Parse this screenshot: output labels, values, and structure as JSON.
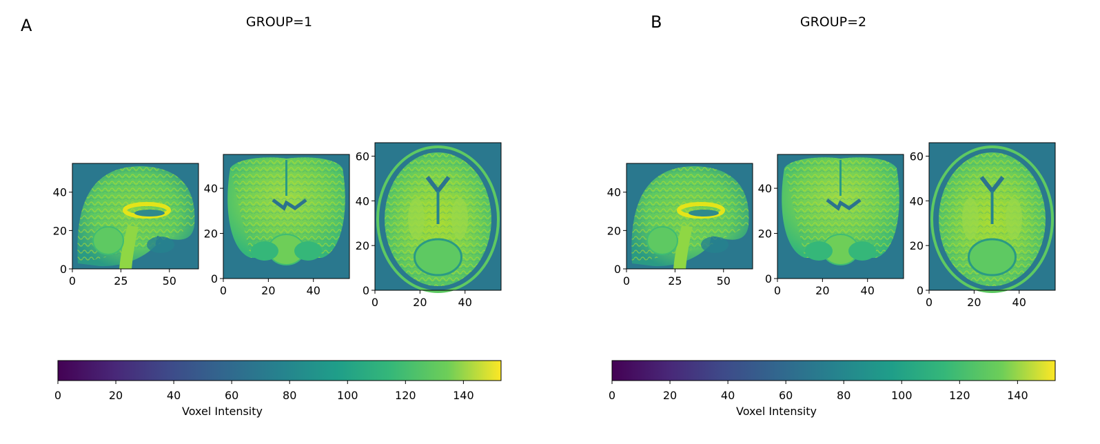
{
  "panels": [
    {
      "letter": "A",
      "title": "GROUP=1",
      "views": [
        {
          "name": "sagittal",
          "x_ticks": [
            "0",
            "25",
            "50"
          ],
          "y_ticks": [
            "0",
            "20",
            "40"
          ]
        },
        {
          "name": "coronal",
          "x_ticks": [
            "0",
            "20",
            "40"
          ],
          "y_ticks": [
            "0",
            "20",
            "40"
          ]
        },
        {
          "name": "axial",
          "x_ticks": [
            "0",
            "20",
            "40"
          ],
          "y_ticks": [
            "0",
            "20",
            "40",
            "60"
          ]
        }
      ],
      "colorbar": {
        "label": "Voxel Intensity",
        "ticks": [
          "0",
          "20",
          "40",
          "60",
          "80",
          "100",
          "120",
          "140"
        ],
        "vmin": 0,
        "vmax": 153
      }
    },
    {
      "letter": "B",
      "title": "GROUP=2",
      "views": [
        {
          "name": "sagittal",
          "x_ticks": [
            "0",
            "25",
            "50"
          ],
          "y_ticks": [
            "0",
            "20",
            "40"
          ]
        },
        {
          "name": "coronal",
          "x_ticks": [
            "0",
            "20",
            "40"
          ],
          "y_ticks": [
            "0",
            "20",
            "40"
          ]
        },
        {
          "name": "axial",
          "x_ticks": [
            "0",
            "20",
            "40"
          ],
          "y_ticks": [
            "0",
            "20",
            "40",
            "60"
          ]
        }
      ],
      "colorbar": {
        "label": "Voxel Intensity",
        "ticks": [
          "0",
          "20",
          "40",
          "60",
          "80",
          "100",
          "120",
          "140"
        ],
        "vmin": 0,
        "vmax": 153
      }
    }
  ],
  "chart_data": [
    {
      "type": "heatmap",
      "title": "GROUP=1",
      "panel": "A",
      "images": [
        {
          "view": "sagittal",
          "xlim": [
            0,
            65
          ],
          "ylim": [
            0,
            55
          ],
          "xticks": [
            0,
            25,
            50
          ],
          "yticks": [
            0,
            20,
            40
          ]
        },
        {
          "view": "coronal",
          "xlim": [
            0,
            56
          ],
          "ylim": [
            0,
            55
          ],
          "xticks": [
            0,
            20,
            40
          ],
          "yticks": [
            0,
            20,
            40
          ]
        },
        {
          "view": "axial",
          "xlim": [
            0,
            56
          ],
          "ylim": [
            0,
            66
          ],
          "xticks": [
            0,
            20,
            40
          ],
          "yticks": [
            0,
            20,
            40,
            60
          ]
        }
      ],
      "colormap": "viridis",
      "colorbar": {
        "label": "Voxel Intensity",
        "range": [
          0,
          153
        ],
        "ticks": [
          0,
          20,
          40,
          60,
          80,
          100,
          120,
          140
        ]
      }
    },
    {
      "type": "heatmap",
      "title": "GROUP=2",
      "panel": "B",
      "images": [
        {
          "view": "sagittal",
          "xlim": [
            0,
            65
          ],
          "ylim": [
            0,
            55
          ],
          "xticks": [
            0,
            25,
            50
          ],
          "yticks": [
            0,
            20,
            40
          ]
        },
        {
          "view": "coronal",
          "xlim": [
            0,
            56
          ],
          "ylim": [
            0,
            55
          ],
          "xticks": [
            0,
            20,
            40
          ],
          "yticks": [
            0,
            20,
            40
          ]
        },
        {
          "view": "axial",
          "xlim": [
            0,
            56
          ],
          "ylim": [
            0,
            66
          ],
          "xticks": [
            0,
            20,
            40
          ],
          "yticks": [
            0,
            20,
            40,
            60
          ]
        }
      ],
      "colormap": "viridis",
      "colorbar": {
        "label": "Voxel Intensity",
        "range": [
          0,
          153
        ],
        "ticks": [
          0,
          20,
          40,
          60,
          80,
          100,
          120,
          140
        ]
      }
    }
  ]
}
